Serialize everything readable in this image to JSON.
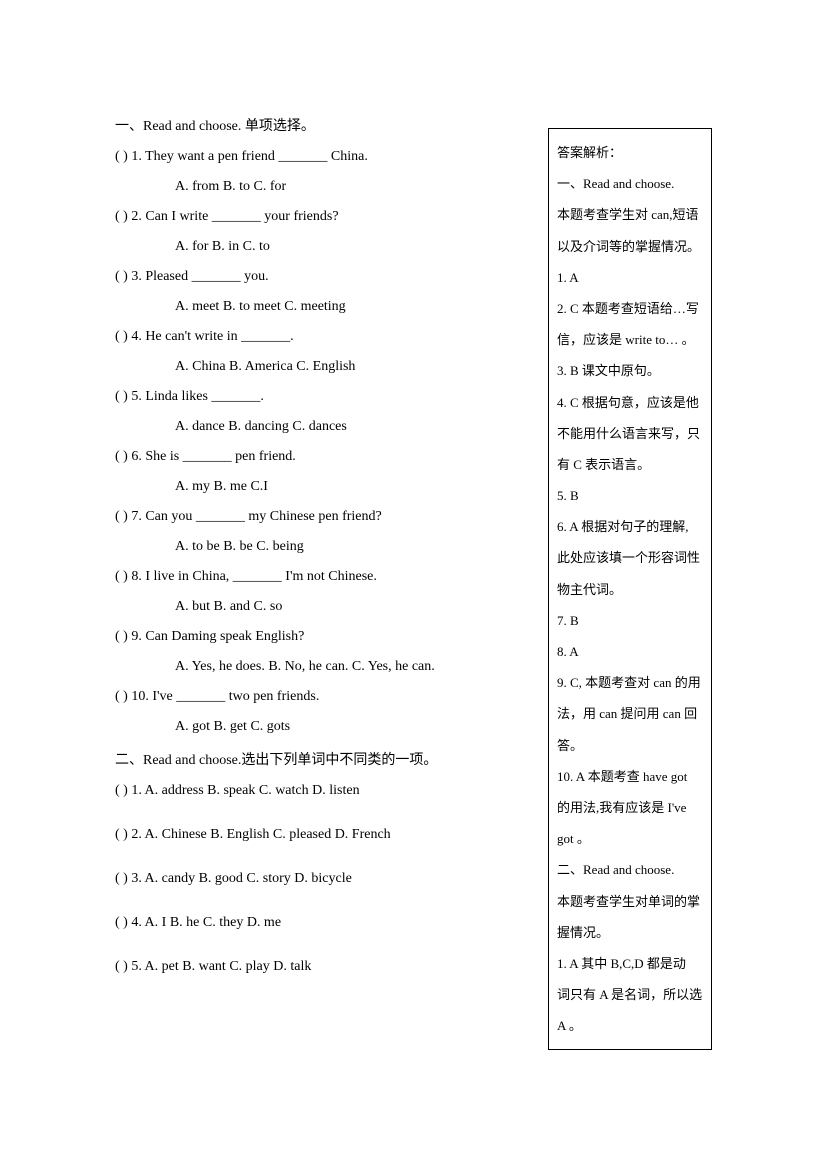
{
  "section1": {
    "title_prefix": "一、",
    "title_roman": "Read and choose.",
    "title_suffix": "  单项选择。",
    "questions": [
      {
        "num": "1",
        "stem_parts": [
          "(      ) 1. They want a pen friend _______ China."
        ],
        "options": "A. from       B. to       C. for"
      },
      {
        "num": "2",
        "stem_parts": [
          "(      ) 2. Can I write _______ your friends?"
        ],
        "options": "A. for      B. in      C. to"
      },
      {
        "num": "3",
        "stem_parts": [
          "(      ) 3. Pleased _______ you."
        ],
        "options": "A. meet      B. to meet      C. meeting"
      },
      {
        "num": "4",
        "stem_parts": [
          "(      ) 4. He can't write in _______."
        ],
        "options": "A. China       B. America      C. English"
      },
      {
        "num": "5",
        "stem_parts": [
          "(      ) 5. Linda likes _______."
        ],
        "options": "A. dance        B. dancing      C. dances"
      },
      {
        "num": "6",
        "stem_parts": [
          "(      ) 6. She is _______ pen friend."
        ],
        "options": "A. my             B. me             C.I"
      },
      {
        "num": "7",
        "stem_parts": [
          "(      ) 7. Can you _______ my Chinese pen friend?"
        ],
        "options": "A. to be       B. be      C. being"
      },
      {
        "num": "8",
        "stem_parts": [
          "(      ) 8. I live in China, _______ I'm not Chinese."
        ],
        "options": "A. but       B. and      C. so"
      },
      {
        "num": "9",
        "stem_parts": [
          "(      ) 9. Can Daming speak English?"
        ],
        "options": "A. Yes, he does.        B. No, he can.       C. Yes, he can."
      },
      {
        "num": "10",
        "stem_parts": [
          "(      ) 10. I've _______ two pen friends."
        ],
        "options": "A. got       B. get       C. gots"
      }
    ]
  },
  "section2": {
    "title_prefix": "二、",
    "title_roman": "Read and choose.",
    "title_suffix": "选出下列单词中不同类的一项。",
    "questions": [
      "(      ) 1. A. address      B. speak      C. watch      D. listen",
      "(      ) 2. A. Chinese      B. English    C. pleased      D. French",
      "(      ) 3. A. candy    B. good    C. story      D. bicycle",
      "(      ) 4. A. I    B. he      C. they      D. me",
      "(      ) 5. A. pet      B. want      C. play      D. talk"
    ]
  },
  "answers": {
    "lines": [
      "答案解析：",
      "一、Read and choose.",
      "本题考查学生对 can,短语",
      "以及介词等的掌握情况。",
      "1.  A",
      "2. C 本题考查短语给…写",
      "信，应该是 write to… 。",
      "3.  B 课文中原句。",
      "4. C 根据句意，应该是他",
      "不能用什么语言来写，只",
      "有 C 表示语言。",
      "5.  B",
      "6.  A 根据对句子的理解,",
      "此处应该填一个形容词性",
      "物主代词。",
      "7.  B",
      "8.  A",
      "9. C, 本题考查对 can 的用",
      "法，用 can 提问用 can 回",
      "答。",
      "10.  A 本题考查 have got",
      "的用法,我有应该是 I've",
      "got 。",
      "二、Read and choose.",
      "本题考查学生对单词的掌",
      "握情况。",
      "1.  A   其中 B,C,D 都是动",
      "词只有 A 是名词，所以选",
      "A 。"
    ]
  }
}
